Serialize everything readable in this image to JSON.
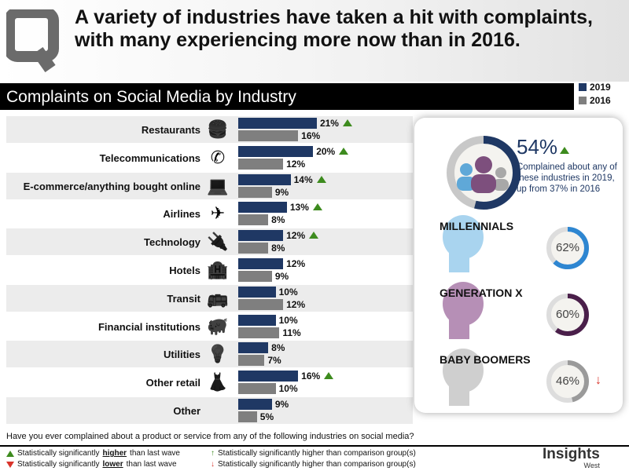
{
  "header": {
    "title": "A variety of industries have taken a hit with complaints, with many experiencing more now than in 2016.",
    "subtitle": "Complaints on Social Media by Industry"
  },
  "legend": {
    "items": [
      {
        "label": "2019",
        "color": "#1f3864"
      },
      {
        "label": "2016",
        "color": "#7f7f7f"
      }
    ]
  },
  "chart_data": {
    "type": "bar",
    "orientation": "horizontal",
    "title": "Complaints on Social Media by Industry",
    "categories": [
      "Restaurants",
      "Telecommunications",
      "E-commerce/anything bought online",
      "Airlines",
      "Technology",
      "Hotels",
      "Transit",
      "Financial institutions",
      "Utilities",
      "Other retail",
      "Other"
    ],
    "icons": [
      "fast-food-icon",
      "phone-icon",
      "laptop-globe-icon",
      "airplane-icon",
      "plug-icon",
      "hotel-icon",
      "bus-icon",
      "piggy-bank-icon",
      "lightbulb-icon",
      "dress-icon",
      ""
    ],
    "series": [
      {
        "name": "2019",
        "color": "#1f3864",
        "values": [
          21,
          20,
          14,
          13,
          12,
          12,
          10,
          10,
          8,
          16,
          9
        ],
        "significant_higher": [
          true,
          true,
          true,
          true,
          true,
          false,
          false,
          false,
          false,
          true,
          false
        ]
      },
      {
        "name": "2016",
        "color": "#7f7f7f",
        "values": [
          16,
          12,
          9,
          8,
          8,
          9,
          12,
          11,
          7,
          10,
          5
        ]
      }
    ],
    "unit": "%",
    "xlim": [
      0,
      25
    ]
  },
  "summary": {
    "value": "54%",
    "value_fraction": 0.54,
    "text": "Complained about any of these industries in 2019, up from 37% in 2016"
  },
  "generations": [
    {
      "name": "MILLENNIALS",
      "value": "62%",
      "fraction": 0.62,
      "color": "#2e86d1",
      "head": "#a9d4ef"
    },
    {
      "name": "GENERATION X",
      "value": "60%",
      "fraction": 0.6,
      "color": "#4a1f4a",
      "head": "#b68fb6"
    },
    {
      "name": "BABY BOOMERS",
      "value": "46%",
      "fraction": 0.46,
      "color": "#9a9a9a",
      "head": "#cfcfcf",
      "arrow": "down"
    }
  ],
  "question": "Have you ever complained about a product or service from any of the following industries on social media?",
  "footer": {
    "l1a": "Statistically significantly ",
    "l1b": "higher",
    "l1c": " than last wave",
    "l2a": "Statistically significantly ",
    "l2b": "lower",
    "l2c": " than last wave",
    "r1": "Statistically significantly higher than comparison group(s)",
    "r2": "Statistically significantly higher than comparison group(s)"
  },
  "brand": {
    "name": "Insights",
    "sub": "West"
  }
}
